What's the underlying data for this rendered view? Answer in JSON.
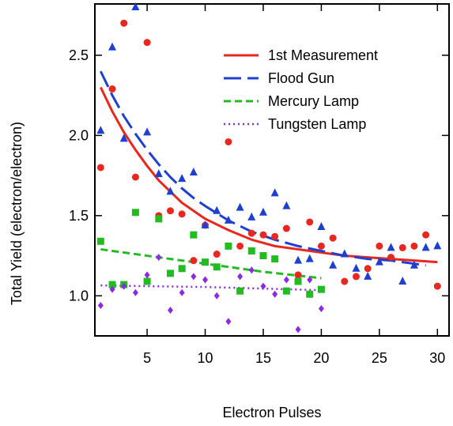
{
  "chart_data": {
    "type": "scatter",
    "title": "",
    "xlabel": "Electron Pulses",
    "ylabel": "Total Yield (electron/electron)",
    "xlim": [
      0.5,
      31
    ],
    "ylim": [
      0.75,
      2.82
    ],
    "xticks": [
      5,
      10,
      15,
      20,
      25,
      30
    ],
    "yticks": [
      1.0,
      1.5,
      2.0,
      2.5
    ],
    "ytick_labels": [
      "1.0",
      "1.5",
      "2.0",
      "2.5"
    ],
    "grid": false,
    "legend_position": "top-right",
    "legend": [
      {
        "label": "1st Measurement",
        "color": "#e8281e",
        "dash": "solid"
      },
      {
        "label": "Flood Gun",
        "color": "#1f3fd0",
        "dash": "long-dash"
      },
      {
        "label": "Mercury Lamp",
        "color": "#22bb22",
        "dash": "dash"
      },
      {
        "label": "Tungsten Lamp",
        "color": "#8a2be2",
        "dash": "dot"
      }
    ],
    "scatter_series": [
      {
        "marker": "circle",
        "color": "#e8281e",
        "points": [
          [
            1,
            1.8
          ],
          [
            2,
            2.29
          ],
          [
            3,
            2.7
          ],
          [
            4,
            1.74
          ],
          [
            5,
            2.58
          ],
          [
            6,
            1.5
          ],
          [
            7,
            1.53
          ],
          [
            8,
            1.51
          ],
          [
            9,
            1.22
          ],
          [
            10,
            1.44
          ],
          [
            11,
            1.26
          ],
          [
            12,
            1.96
          ],
          [
            13,
            1.31
          ],
          [
            14,
            1.39
          ],
          [
            15,
            1.38
          ],
          [
            16,
            1.37
          ],
          [
            17,
            1.42
          ],
          [
            18,
            1.13
          ],
          [
            19,
            1.46
          ],
          [
            20,
            1.31
          ],
          [
            21,
            1.36
          ],
          [
            22,
            1.09
          ],
          [
            23,
            1.12
          ],
          [
            24,
            1.17
          ],
          [
            25,
            1.31
          ],
          [
            26,
            1.24
          ],
          [
            27,
            1.3
          ],
          [
            28,
            1.31
          ],
          [
            29,
            1.38
          ],
          [
            30,
            1.06
          ]
        ]
      },
      {
        "marker": "triangle",
        "color": "#1f3fd0",
        "points": [
          [
            1,
            2.03
          ],
          [
            2,
            2.55
          ],
          [
            3,
            1.98
          ],
          [
            4,
            2.8
          ],
          [
            5,
            2.02
          ],
          [
            6,
            1.76
          ],
          [
            7,
            1.65
          ],
          [
            8,
            1.73
          ],
          [
            9,
            1.77
          ],
          [
            10,
            1.44
          ],
          [
            11,
            1.53
          ],
          [
            12,
            1.47
          ],
          [
            13,
            1.55
          ],
          [
            14,
            1.49
          ],
          [
            15,
            1.52
          ],
          [
            16,
            1.64
          ],
          [
            17,
            1.56
          ],
          [
            18,
            1.22
          ],
          [
            19,
            1.23
          ],
          [
            20,
            1.43
          ],
          [
            21,
            1.19
          ],
          [
            22,
            1.26
          ],
          [
            23,
            1.17
          ],
          [
            24,
            1.12
          ],
          [
            25,
            1.21
          ],
          [
            26,
            1.3
          ],
          [
            27,
            1.09
          ],
          [
            28,
            1.19
          ],
          [
            29,
            1.3
          ],
          [
            30,
            1.31
          ]
        ]
      },
      {
        "marker": "square",
        "color": "#22bb22",
        "points": [
          [
            1,
            1.34
          ],
          [
            2,
            1.07
          ],
          [
            3,
            1.07
          ],
          [
            4,
            1.52
          ],
          [
            5,
            1.09
          ],
          [
            6,
            1.48
          ],
          [
            7,
            1.14
          ],
          [
            8,
            1.17
          ],
          [
            9,
            1.38
          ],
          [
            10,
            1.21
          ],
          [
            11,
            1.18
          ],
          [
            12,
            1.31
          ],
          [
            13,
            1.03
          ],
          [
            14,
            1.28
          ],
          [
            15,
            1.25
          ],
          [
            16,
            1.23
          ],
          [
            17,
            1.03
          ],
          [
            18,
            1.09
          ],
          [
            19,
            1.01
          ],
          [
            20,
            1.04
          ]
        ]
      },
      {
        "marker": "diamond",
        "color": "#8a2be2",
        "points": [
          [
            1,
            0.94
          ],
          [
            2,
            1.04
          ],
          [
            3,
            1.06
          ],
          [
            4,
            1.02
          ],
          [
            5,
            1.13
          ],
          [
            6,
            1.24
          ],
          [
            7,
            0.91
          ],
          [
            8,
            1.02
          ],
          [
            9,
            1.12
          ],
          [
            10,
            1.1
          ],
          [
            11,
            1.0
          ],
          [
            12,
            0.84
          ],
          [
            13,
            1.12
          ],
          [
            14,
            1.16
          ],
          [
            15,
            1.06
          ],
          [
            16,
            1.01
          ],
          [
            17,
            1.1
          ],
          [
            18,
            0.79
          ],
          [
            19,
            1.1
          ],
          [
            20,
            0.92
          ]
        ]
      }
    ],
    "fit_series": [
      {
        "label": "1st Measurement",
        "color": "#e8281e",
        "dash": "solid",
        "x": [
          1,
          2,
          3,
          4,
          5,
          6,
          7,
          8,
          9,
          10,
          12,
          14,
          16,
          18,
          20,
          22,
          24,
          26,
          28,
          30
        ],
        "y": [
          2.3,
          2.15,
          2.02,
          1.91,
          1.81,
          1.72,
          1.65,
          1.58,
          1.53,
          1.48,
          1.41,
          1.35,
          1.31,
          1.29,
          1.27,
          1.25,
          1.24,
          1.23,
          1.22,
          1.21
        ]
      },
      {
        "label": "Flood Gun",
        "color": "#1f3fd0",
        "dash": "long-dash",
        "x": [
          1,
          2,
          3,
          4,
          5,
          6,
          7,
          8,
          9,
          10,
          12,
          14,
          16,
          18,
          20,
          22,
          24,
          26,
          28,
          29
        ],
        "y": [
          2.4,
          2.25,
          2.12,
          2.01,
          1.91,
          1.82,
          1.74,
          1.67,
          1.61,
          1.56,
          1.47,
          1.4,
          1.35,
          1.31,
          1.28,
          1.25,
          1.23,
          1.22,
          1.2,
          1.19
        ]
      },
      {
        "label": "Mercury Lamp",
        "color": "#22bb22",
        "dash": "dash",
        "x": [
          1,
          5,
          10,
          15,
          20
        ],
        "y": [
          1.29,
          1.25,
          1.2,
          1.15,
          1.11
        ]
      },
      {
        "label": "Tungsten Lamp",
        "color": "#8a2be2",
        "dash": "dot",
        "x": [
          1,
          5,
          10,
          15,
          20
        ],
        "y": [
          1.065,
          1.06,
          1.055,
          1.045,
          1.035
        ]
      }
    ]
  }
}
